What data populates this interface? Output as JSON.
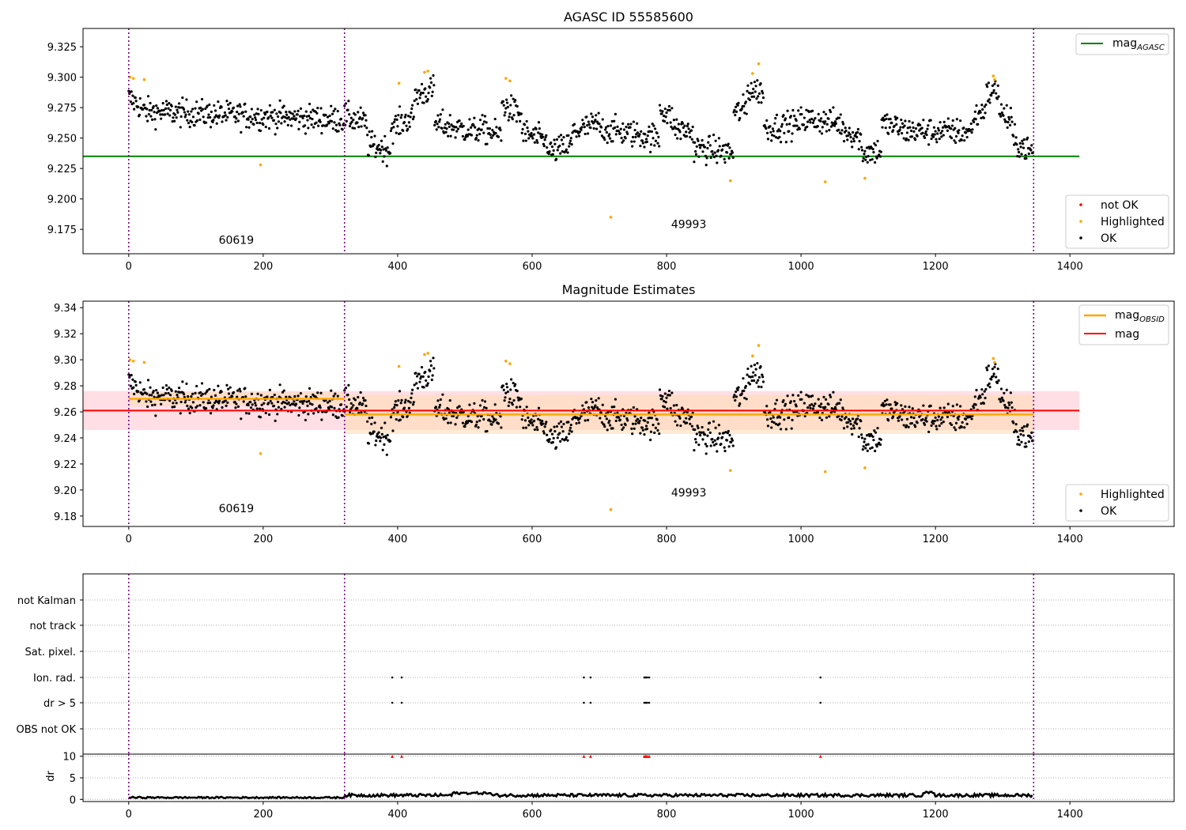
{
  "chart_data": [
    {
      "type": "scatter",
      "title": "AGASC ID 55585600",
      "xlim": [
        -68,
        1555
      ],
      "ylim": [
        9.155,
        9.34
      ],
      "xticks": [
        "0",
        "200",
        "400",
        "600",
        "800",
        "1000",
        "1200",
        "1400"
      ],
      "yticks": [
        "9.175",
        "9.200",
        "9.225",
        "9.250",
        "9.275",
        "9.300",
        "9.325"
      ],
      "ytick_values": [
        9.175,
        9.2,
        9.225,
        9.25,
        9.275,
        9.3,
        9.325
      ],
      "hline": {
        "name": "mag",
        "subscript": "AGASC",
        "y": 9.235,
        "color": "#008000",
        "x_range": [
          -68,
          1414
        ]
      },
      "obs_boundaries": [
        0,
        321,
        1346
      ],
      "obs_labels": [
        {
          "text": "60619",
          "x": 160,
          "y": 9.163
        },
        {
          "text": "49993",
          "x": 833,
          "y": 9.176
        }
      ],
      "series": [
        {
          "name": "not OK",
          "color": "#ff0000",
          "values": []
        },
        {
          "name": "Highlighted",
          "color": "#ffa500",
          "points": [
            [
              2,
              9.3
            ],
            [
              7,
              9.299
            ],
            [
              23,
              9.298
            ],
            [
              196,
              9.228
            ],
            [
              402,
              9.295
            ],
            [
              440,
              9.304
            ],
            [
              445,
              9.305
            ],
            [
              561,
              9.299
            ],
            [
              567,
              9.297
            ],
            [
              717,
              9.185
            ],
            [
              895,
              9.215
            ],
            [
              928,
              9.303
            ],
            [
              937,
              9.311
            ],
            [
              1036,
              9.214
            ],
            [
              1095,
              9.217
            ],
            [
              1286,
              9.301
            ],
            [
              1288,
              9.298
            ]
          ]
        },
        {
          "name": "OK",
          "color": "#000000"
        }
      ],
      "legend_lines": {
        "entries": [
          "mag_AGASC"
        ],
        "placement": "top-right"
      },
      "legend_points": {
        "entries": [
          "not OK",
          "Highlighted",
          "OK"
        ],
        "placement": "lower-right"
      }
    },
    {
      "type": "scatter",
      "title": "Magnitude Estimates",
      "xlim": [
        -68,
        1555
      ],
      "ylim": [
        9.172,
        9.345
      ],
      "xticks": [
        "0",
        "200",
        "400",
        "600",
        "800",
        "1000",
        "1200",
        "1400"
      ],
      "yticks": [
        "9.18",
        "9.20",
        "9.22",
        "9.24",
        "9.26",
        "9.28",
        "9.30",
        "9.32",
        "9.34"
      ],
      "ytick_values": [
        9.18,
        9.2,
        9.22,
        9.24,
        9.26,
        9.28,
        9.3,
        9.32,
        9.34
      ],
      "obs_boundaries": [
        0,
        321,
        1346
      ],
      "obs_labels": [
        {
          "text": "60619",
          "x": 160,
          "y": 9.183
        },
        {
          "text": "49993",
          "x": 833,
          "y": 9.195
        }
      ],
      "mag_line": {
        "name": "mag",
        "y": 9.261,
        "color": "#ff0000",
        "band": [
          9.246,
          9.276
        ],
        "x_range": [
          -68,
          1414
        ]
      },
      "obsid_lines": [
        {
          "x_range": [
            0,
            321
          ],
          "y": 9.27,
          "band": [
            9.265,
            9.275
          ]
        },
        {
          "x_range": [
            321,
            1346
          ],
          "y": 9.258,
          "band": [
            9.243,
            9.273
          ]
        }
      ],
      "series": [
        {
          "name": "Highlighted",
          "color": "#ffa500"
        },
        {
          "name": "OK",
          "color": "#000000"
        }
      ],
      "legend_lines": {
        "entries": [
          "mag_OBSID",
          "mag"
        ],
        "placement": "top-right"
      },
      "legend_points": {
        "entries": [
          "Highlighted",
          "OK"
        ],
        "placement": "lower-right"
      }
    },
    {
      "type": "scatter",
      "xlim": [
        -68,
        1555
      ],
      "categories": [
        "not Kalman",
        "not track",
        "Sat. pixel.",
        "Ion. rad.",
        "dr > 5",
        "OBS not OK"
      ],
      "flags": {
        "Ion. rad.": [
          392,
          406,
          677,
          687,
          767,
          769,
          771,
          774,
          1029
        ],
        "dr > 5": [
          392,
          406,
          677,
          687,
          767,
          769,
          771,
          774,
          1029
        ]
      },
      "obs_boundaries": [
        0,
        321,
        1346
      ]
    },
    {
      "type": "line",
      "ylabel": "dr",
      "xlim": [
        -68,
        1555
      ],
      "ylim": [
        -0.5,
        10.5
      ],
      "yticks": [
        "0",
        "5",
        "10"
      ],
      "ytick_values": [
        0,
        5,
        10
      ],
      "xticks": [
        "0",
        "200",
        "400",
        "600",
        "800",
        "1000",
        "1200",
        "1400"
      ],
      "clipped_points_at_10": [
        392,
        406,
        677,
        687,
        767,
        769,
        771,
        774,
        1029
      ],
      "clipped_color": "#ff0000",
      "obs_boundaries": [
        0,
        321,
        1346
      ]
    }
  ],
  "colors": {
    "vline": "#800080",
    "highlight": "#ffa500",
    "ok": "#000000",
    "not_ok": "#ff0000",
    "agasc": "#008000",
    "mag": "#ff0000",
    "obsid": "#ffa500",
    "band_mag": "#ffc0cb",
    "band_obsid": "#ffdab0"
  }
}
